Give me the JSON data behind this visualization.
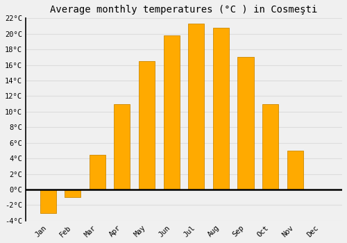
{
  "title": "Average monthly temperatures (°C ) in Cosmeşti",
  "months": [
    "Jan",
    "Feb",
    "Mar",
    "Apr",
    "May",
    "Jun",
    "Jul",
    "Aug",
    "Sep",
    "Oct",
    "Nov",
    "Dec"
  ],
  "values": [
    -3.0,
    -1.0,
    4.5,
    11.0,
    16.5,
    19.8,
    21.3,
    20.8,
    17.0,
    11.0,
    5.0,
    0.0
  ],
  "bar_color": "#FFAA00",
  "bar_edge_color": "#CC8800",
  "ylim": [
    -4,
    22
  ],
  "yticks": [
    -4,
    -2,
    0,
    2,
    4,
    6,
    8,
    10,
    12,
    14,
    16,
    18,
    20,
    22
  ],
  "ytick_labels": [
    "-4°C",
    "-2°C",
    "0°C",
    "2°C",
    "4°C",
    "6°C",
    "8°C",
    "10°C",
    "12°C",
    "14°C",
    "16°C",
    "18°C",
    "20°C",
    "22°C"
  ],
  "background_color": "#f0f0f0",
  "grid_color": "#dddddd",
  "zero_line_color": "#000000",
  "spine_color": "#000000",
  "title_fontsize": 10,
  "tick_fontsize": 7.5,
  "bar_width": 0.65
}
